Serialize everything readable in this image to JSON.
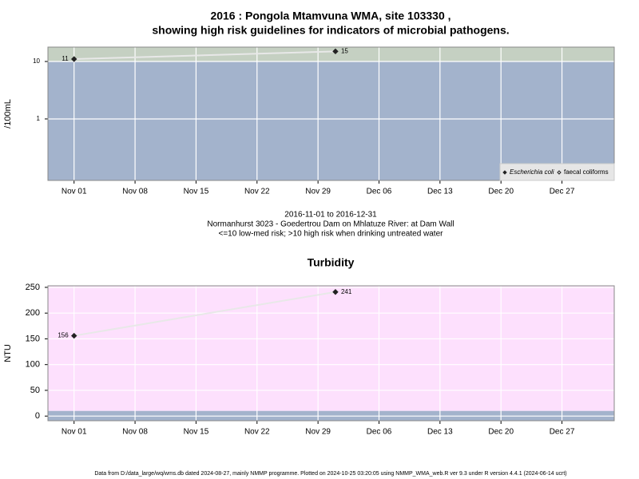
{
  "chart_data": [
    {
      "type": "line",
      "title": "2016 : Pongola Mtamvuna WMA, site 103330 ,",
      "subtitle": "showing high risk guidelines for indicators of microbial pathogens.",
      "y_label": "/100mL",
      "log_scale": true,
      "ylim": [
        0.085,
        17.8
      ],
      "yticks": [
        1,
        10
      ],
      "xlim": [
        "2016-10-29",
        "2017-01-02"
      ],
      "xticks": [
        {
          "value": "2016-11-01",
          "label": "Nov 01"
        },
        {
          "value": "2016-11-08",
          "label": "Nov 08"
        },
        {
          "value": "2016-11-15",
          "label": "Nov 15"
        },
        {
          "value": "2016-11-22",
          "label": "Nov 22"
        },
        {
          "value": "2016-11-29",
          "label": "Nov 29"
        },
        {
          "value": "2016-12-06",
          "label": "Dec 06"
        },
        {
          "value": "2016-12-13",
          "label": "Dec 13"
        },
        {
          "value": "2016-12-20",
          "label": "Dec 20"
        },
        {
          "value": "2016-12-27",
          "label": "Dec 27"
        }
      ],
      "x": [
        "2016-11-01",
        "2016-12-01"
      ],
      "threshold": 10,
      "zone_colors": {
        "low": "#a3b3cc",
        "high": "#c5d0c2"
      },
      "grid": true,
      "legend": "bottom-right",
      "series": [
        {
          "name": "Escherichia coli",
          "color": "#222222",
          "marker": "filled",
          "values": [
            11,
            15
          ]
        },
        {
          "name": "faecal coliforms",
          "color": "#222222",
          "marker": "hollow",
          "values": [
            null,
            null
          ]
        }
      ]
    },
    {
      "type": "line",
      "title": "Turbidity",
      "y_label": "NTU",
      "log_scale": false,
      "ylim": [
        -9,
        253
      ],
      "yticks": [
        0,
        50,
        100,
        150,
        200,
        250
      ],
      "xlim": [
        "2016-10-29",
        "2017-01-02"
      ],
      "xticks": [
        {
          "value": "2016-11-01",
          "label": "Nov 01"
        },
        {
          "value": "2016-11-08",
          "label": "Nov 08"
        },
        {
          "value": "2016-11-15",
          "label": "Nov 15"
        },
        {
          "value": "2016-11-22",
          "label": "Nov 22"
        },
        {
          "value": "2016-11-29",
          "label": "Nov 29"
        },
        {
          "value": "2016-12-06",
          "label": "Dec 06"
        },
        {
          "value": "2016-12-13",
          "label": "Dec 13"
        },
        {
          "value": "2016-12-20",
          "label": "Dec 20"
        },
        {
          "value": "2016-12-27",
          "label": "Dec 27"
        }
      ],
      "x": [
        "2016-11-01",
        "2016-12-01"
      ],
      "threshold": 10,
      "zone_colors": {
        "low": "#a3b3cc",
        "high": "#fde0fd"
      },
      "grid": true,
      "series": [
        {
          "color": "#222222",
          "marker": "filled",
          "values": [
            156,
            241
          ]
        }
      ]
    }
  ],
  "caption": [
    "2016-11-01 to 2016-12-31",
    "Normanhurst 3023 - Goedertrou Dam on Mhlatuze River: at Dam Wall",
    "<=10 low-med risk; >10 high risk when drinking untreated water"
  ],
  "footer": "Data from D:/data_large/wq/wms.db dated 2024-08-27, mainly NMMP programme. Plotted on 2024-10-25 03:20:05 using NMMP_WMA_web.R ver 9.3 under R version 4.4.1 (2024-06-14 ucrt)"
}
